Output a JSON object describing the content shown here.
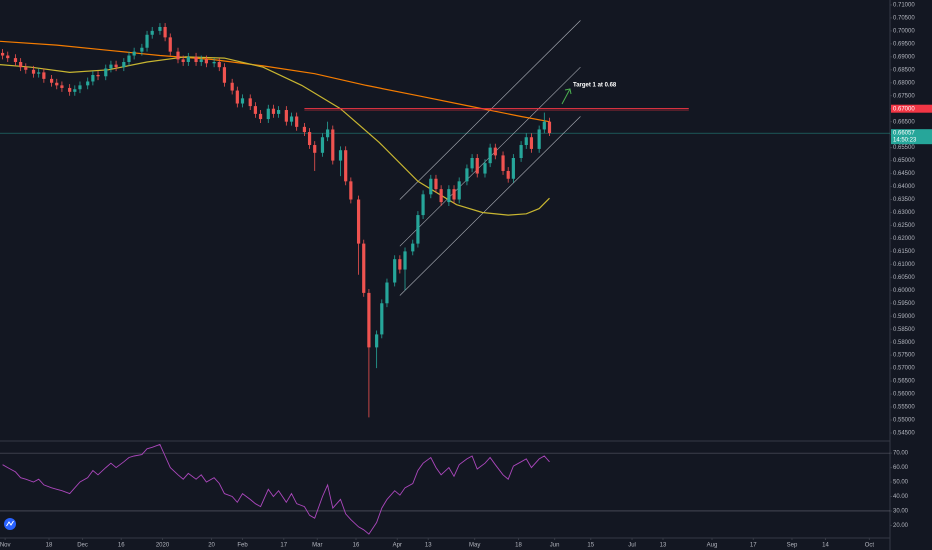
{
  "chart_data": {
    "type": "candlestick",
    "annotation": "Target 1 at 0.68",
    "xlim": [
      -2,
      343
    ],
    "xticks": [
      {
        "value": 0,
        "label": "Nov"
      },
      {
        "value": 17,
        "label": "18"
      },
      {
        "value": 30,
        "label": "Dec"
      },
      {
        "value": 45,
        "label": "16"
      },
      {
        "value": 61,
        "label": "2020"
      },
      {
        "value": 80,
        "label": "20"
      },
      {
        "value": 92,
        "label": "Feb"
      },
      {
        "value": 108,
        "label": "17"
      },
      {
        "value": 121,
        "label": "Mar"
      },
      {
        "value": 136,
        "label": "16"
      },
      {
        "value": 152,
        "label": "Apr"
      },
      {
        "value": 164,
        "label": "13"
      },
      {
        "value": 182,
        "label": "May"
      },
      {
        "value": 199,
        "label": "18"
      },
      {
        "value": 213,
        "label": "Jun"
      },
      {
        "value": 227,
        "label": "15"
      },
      {
        "value": 243,
        "label": "Jul"
      },
      {
        "value": 255,
        "label": "13"
      },
      {
        "value": 274,
        "label": "Aug"
      },
      {
        "value": 290,
        "label": "17"
      },
      {
        "value": 305,
        "label": "Sep"
      },
      {
        "value": 318,
        "label": "14"
      },
      {
        "value": 335,
        "label": "Oct"
      }
    ],
    "ylim": [
      0.5423,
      0.7119
    ],
    "yticks": [
      {
        "value": 0.71,
        "label": "0.71000"
      },
      {
        "value": 0.705,
        "label": "0.70500"
      },
      {
        "value": 0.7,
        "label": "0.70000"
      },
      {
        "value": 0.695,
        "label": "0.69500"
      },
      {
        "value": 0.69,
        "label": "0.69000"
      },
      {
        "value": 0.685,
        "label": "0.68500"
      },
      {
        "value": 0.68,
        "label": "0.68000"
      },
      {
        "value": 0.675,
        "label": "0.67500"
      },
      {
        "value": 0.67,
        "label": "0.67000"
      },
      {
        "value": 0.665,
        "label": "0.66500"
      },
      {
        "value": 0.66,
        "label": "0.66000"
      },
      {
        "value": 0.655,
        "label": "0.65500"
      },
      {
        "value": 0.65,
        "label": "0.65000"
      },
      {
        "value": 0.645,
        "label": "0.64500"
      },
      {
        "value": 0.64,
        "label": "0.64000"
      },
      {
        "value": 0.635,
        "label": "0.63500"
      },
      {
        "value": 0.63,
        "label": "0.63000"
      },
      {
        "value": 0.625,
        "label": "0.62500"
      },
      {
        "value": 0.62,
        "label": "0.62000"
      },
      {
        "value": 0.615,
        "label": "0.61500"
      },
      {
        "value": 0.61,
        "label": "0.61000"
      },
      {
        "value": 0.605,
        "label": "0.60500"
      },
      {
        "value": 0.6,
        "label": "0.60000"
      },
      {
        "value": 0.595,
        "label": "0.59500"
      },
      {
        "value": 0.59,
        "label": "0.59000"
      },
      {
        "value": 0.585,
        "label": "0.58500"
      },
      {
        "value": 0.58,
        "label": "0.58000"
      },
      {
        "value": 0.575,
        "label": "0.57500"
      },
      {
        "value": 0.57,
        "label": "0.57000"
      },
      {
        "value": 0.565,
        "label": "0.56500"
      },
      {
        "value": 0.56,
        "label": "0.56000"
      },
      {
        "value": 0.555,
        "label": "0.55500"
      },
      {
        "value": 0.55,
        "label": "0.55000"
      },
      {
        "value": 0.545,
        "label": "0.54500"
      }
    ],
    "up_color": "#26a69a",
    "down_color": "#ef5350",
    "candles": {
      "x": [
        -1,
        1,
        4,
        6,
        8,
        11,
        13,
        15,
        18,
        20,
        22,
        25,
        27,
        29,
        32,
        34,
        36,
        39,
        41,
        43,
        46,
        48,
        50,
        53,
        55,
        57,
        60,
        62,
        64,
        67,
        69,
        71,
        74,
        76,
        78,
        81,
        83,
        85,
        88,
        90,
        92,
        95,
        97,
        99,
        102,
        104,
        106,
        109,
        111,
        113,
        116,
        118,
        120,
        123,
        125,
        127,
        130,
        132,
        134,
        137,
        139,
        141,
        144,
        146,
        148,
        151,
        153,
        155,
        158,
        160,
        162,
        165,
        167,
        169,
        172,
        174,
        176,
        179,
        181,
        183,
        186,
        188,
        190,
        193,
        195,
        197,
        200,
        202,
        204,
        207,
        209,
        211
      ],
      "open": [
        0.6915,
        0.6905,
        0.6895,
        0.688,
        0.686,
        0.685,
        0.6835,
        0.684,
        0.6815,
        0.68,
        0.679,
        0.678,
        0.6765,
        0.6775,
        0.679,
        0.6805,
        0.683,
        0.6825,
        0.6855,
        0.687,
        0.686,
        0.688,
        0.6905,
        0.692,
        0.6935,
        0.6985,
        0.7,
        0.7015,
        0.6975,
        0.692,
        0.689,
        0.688,
        0.69,
        0.688,
        0.689,
        0.6875,
        0.688,
        0.686,
        0.68,
        0.677,
        0.672,
        0.674,
        0.671,
        0.668,
        0.666,
        0.67,
        0.668,
        0.6695,
        0.665,
        0.667,
        0.663,
        0.661,
        0.656,
        0.653,
        0.659,
        0.662,
        0.65,
        0.654,
        0.642,
        0.635,
        0.618,
        0.599,
        0.578,
        0.583,
        0.595,
        0.603,
        0.612,
        0.608,
        0.615,
        0.618,
        0.629,
        0.637,
        0.643,
        0.639,
        0.634,
        0.639,
        0.635,
        0.642,
        0.647,
        0.651,
        0.645,
        0.649,
        0.655,
        0.652,
        0.646,
        0.643,
        0.651,
        0.656,
        0.659,
        0.6545,
        0.662,
        0.665
      ],
      "high": [
        0.693,
        0.692,
        0.691,
        0.6895,
        0.6875,
        0.6865,
        0.6855,
        0.6855,
        0.683,
        0.6815,
        0.6805,
        0.6795,
        0.679,
        0.6805,
        0.682,
        0.6845,
        0.6845,
        0.687,
        0.6885,
        0.6885,
        0.6895,
        0.692,
        0.6935,
        0.695,
        0.7,
        0.7015,
        0.703,
        0.703,
        0.699,
        0.6935,
        0.6905,
        0.6915,
        0.6915,
        0.6905,
        0.6905,
        0.6895,
        0.6895,
        0.6875,
        0.6815,
        0.6785,
        0.6755,
        0.6755,
        0.6725,
        0.6695,
        0.6715,
        0.6715,
        0.671,
        0.671,
        0.6685,
        0.6685,
        0.6645,
        0.6625,
        0.6575,
        0.6605,
        0.665,
        0.6635,
        0.6555,
        0.6555,
        0.6435,
        0.6365,
        0.6195,
        0.6005,
        0.5845,
        0.5965,
        0.6045,
        0.6135,
        0.6135,
        0.6165,
        0.6195,
        0.6305,
        0.6385,
        0.6445,
        0.6445,
        0.6405,
        0.6405,
        0.6405,
        0.6435,
        0.6485,
        0.6525,
        0.6525,
        0.6505,
        0.6565,
        0.6565,
        0.6535,
        0.6475,
        0.6525,
        0.6575,
        0.6605,
        0.6605,
        0.6635,
        0.6685,
        0.6665
      ],
      "low": [
        0.689,
        0.688,
        0.6865,
        0.6845,
        0.6835,
        0.682,
        0.682,
        0.68,
        0.6785,
        0.6775,
        0.6765,
        0.675,
        0.675,
        0.676,
        0.6775,
        0.679,
        0.681,
        0.681,
        0.684,
        0.6845,
        0.6845,
        0.6865,
        0.689,
        0.6905,
        0.692,
        0.697,
        0.6985,
        0.696,
        0.6905,
        0.6875,
        0.6865,
        0.6865,
        0.6865,
        0.6865,
        0.686,
        0.686,
        0.6845,
        0.6785,
        0.6755,
        0.6705,
        0.6705,
        0.6695,
        0.6665,
        0.6645,
        0.6645,
        0.6665,
        0.6665,
        0.6635,
        0.6635,
        0.6615,
        0.6595,
        0.6545,
        0.646,
        0.6515,
        0.6575,
        0.6485,
        0.644,
        0.6405,
        0.6335,
        0.606,
        0.5975,
        0.551,
        0.57,
        0.5815,
        0.5935,
        0.6015,
        0.6065,
        0.6,
        0.6135,
        0.6165,
        0.6275,
        0.6355,
        0.6375,
        0.6325,
        0.6325,
        0.6335,
        0.6335,
        0.6405,
        0.6455,
        0.6435,
        0.6435,
        0.6475,
        0.6505,
        0.6445,
        0.6415,
        0.6415,
        0.6495,
        0.6545,
        0.653,
        0.653,
        0.6605,
        0.6595
      ],
      "close": [
        0.6905,
        0.6895,
        0.688,
        0.686,
        0.685,
        0.6835,
        0.684,
        0.6815,
        0.68,
        0.679,
        0.678,
        0.6765,
        0.6775,
        0.679,
        0.6805,
        0.683,
        0.6825,
        0.6855,
        0.687,
        0.686,
        0.688,
        0.6905,
        0.692,
        0.6935,
        0.6985,
        0.7,
        0.7015,
        0.6975,
        0.692,
        0.689,
        0.688,
        0.69,
        0.688,
        0.689,
        0.6875,
        0.688,
        0.686,
        0.68,
        0.677,
        0.672,
        0.674,
        0.671,
        0.668,
        0.666,
        0.67,
        0.668,
        0.6695,
        0.665,
        0.667,
        0.663,
        0.661,
        0.656,
        0.653,
        0.659,
        0.662,
        0.65,
        0.654,
        0.642,
        0.635,
        0.618,
        0.599,
        0.578,
        0.583,
        0.595,
        0.603,
        0.612,
        0.608,
        0.615,
        0.618,
        0.629,
        0.637,
        0.643,
        0.639,
        0.634,
        0.639,
        0.635,
        0.642,
        0.647,
        0.651,
        0.645,
        0.649,
        0.655,
        0.652,
        0.646,
        0.643,
        0.651,
        0.656,
        0.659,
        0.6545,
        0.662,
        0.665,
        0.6606
      ]
    },
    "moving_averages": [
      {
        "color": "#f57c00",
        "x": [
          -2,
          20,
          40,
          60,
          80,
          100,
          120,
          140,
          160,
          180,
          200,
          211
        ],
        "values": [
          0.696,
          0.6945,
          0.6925,
          0.6905,
          0.689,
          0.6865,
          0.6835,
          0.679,
          0.675,
          0.671,
          0.667,
          0.665
        ]
      },
      {
        "color": "#c8b631",
        "x": [
          -2,
          10,
          25,
          40,
          55,
          70,
          85,
          100,
          115,
          130,
          145,
          160,
          175,
          185,
          195,
          202,
          207,
          211
        ],
        "values": [
          0.687,
          0.686,
          0.684,
          0.685,
          0.688,
          0.69,
          0.6895,
          0.686,
          0.679,
          0.67,
          0.657,
          0.642,
          0.633,
          0.63,
          0.629,
          0.6295,
          0.6315,
          0.6355
        ]
      }
    ],
    "channel_lines": [
      {
        "x": [
          153,
          223
        ],
        "values": [
          0.598,
          0.667
        ]
      },
      {
        "x": [
          153,
          223
        ],
        "values": [
          0.617,
          0.686
        ]
      },
      {
        "x": [
          153,
          223
        ],
        "values": [
          0.635,
          0.704
        ]
      }
    ],
    "resistance": {
      "value": 0.67,
      "label": "0.67000",
      "x": [
        116,
        265
      ],
      "color": "#f23645"
    },
    "last_price": {
      "value": 0.66057,
      "label": "0.66057",
      "countdown": "14:50:23",
      "color": "#26a69a"
    },
    "rsi": {
      "color": "#ab47bc",
      "ylim": [
        12,
        77
      ],
      "yticks": [
        {
          "value": 70,
          "label": "70.00"
        },
        {
          "value": 60,
          "label": "60.00"
        },
        {
          "value": 50,
          "label": "50.00"
        },
        {
          "value": 40,
          "label": "40.00"
        },
        {
          "value": 30,
          "label": "30.00"
        },
        {
          "value": 20,
          "label": "20.00"
        }
      ],
      "levels": [
        70,
        30
      ],
      "values": [
        62,
        60,
        57,
        53,
        52,
        50,
        52,
        48,
        46,
        45,
        44,
        42,
        46,
        50,
        53,
        58,
        55,
        60,
        63,
        60,
        64,
        67,
        68,
        69,
        73,
        74,
        76,
        68,
        60,
        55,
        52,
        56,
        52,
        55,
        50,
        53,
        49,
        42,
        40,
        36,
        42,
        38,
        35,
        33,
        45,
        40,
        44,
        36,
        42,
        35,
        33,
        27,
        25,
        40,
        48,
        32,
        38,
        28,
        24,
        19,
        17,
        14,
        22,
        32,
        38,
        44,
        41,
        46,
        49,
        58,
        63,
        67,
        60,
        55,
        60,
        54,
        62,
        66,
        68,
        59,
        63,
        67,
        62,
        55,
        52,
        61,
        64,
        66,
        60,
        66,
        68,
        64
      ]
    }
  }
}
